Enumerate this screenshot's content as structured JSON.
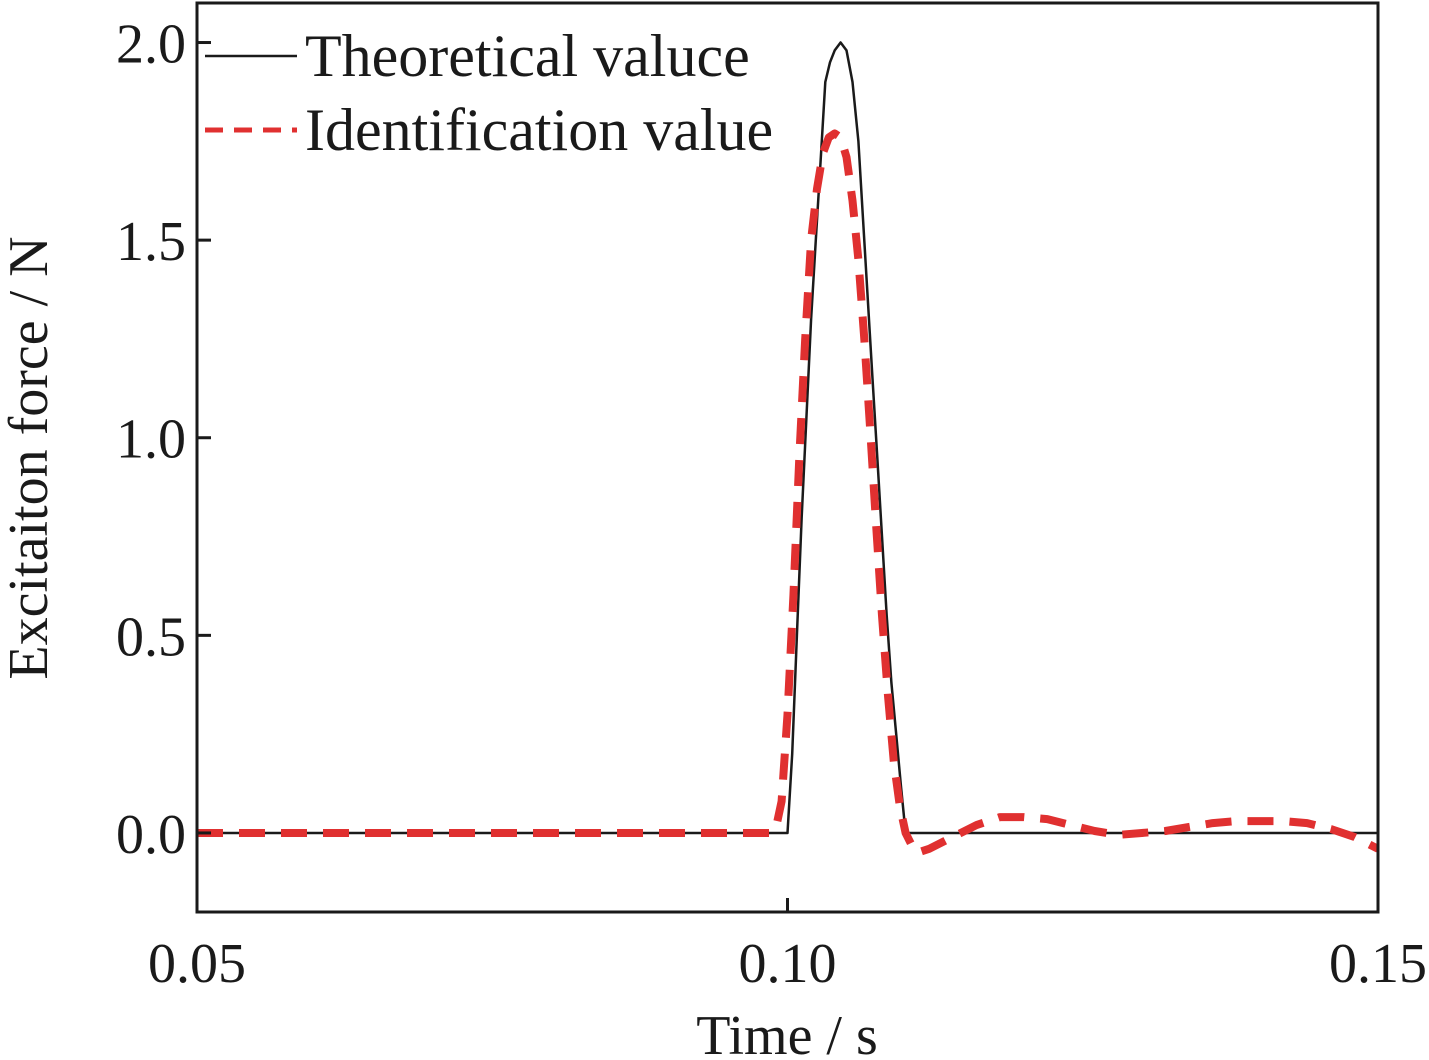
{
  "chart_data": {
    "type": "line",
    "title": "",
    "xlabel": "Time / s",
    "ylabel": "Excitaiton force / N",
    "xlim": [
      0.05,
      0.15
    ],
    "ylim": [
      -0.2,
      2.1
    ],
    "xticks": [
      0.05,
      0.1,
      0.15
    ],
    "xtick_labels": [
      "0.05",
      "0.10",
      "0.15"
    ],
    "yticks": [
      0.0,
      0.5,
      1.0,
      1.5,
      2.0
    ],
    "ytick_labels": [
      "0.0",
      "0.5",
      "1.0",
      "1.5",
      "2.0"
    ],
    "grid": false,
    "legend_position": "top-left",
    "series": [
      {
        "name": "Theoretical valuce",
        "color": "#1a1a1a",
        "style": "solid",
        "x": [
          0.05,
          0.0998,
          0.1,
          0.1004,
          0.1008,
          0.1012,
          0.1016,
          0.102,
          0.1024,
          0.1028,
          0.1032,
          0.1036,
          0.104,
          0.1045,
          0.105,
          0.1055,
          0.106,
          0.1064,
          0.1068,
          0.1072,
          0.1076,
          0.108,
          0.1084,
          0.1088,
          0.1092,
          0.1096,
          0.11,
          0.1102,
          0.15
        ],
        "y": [
          0.0,
          0.0,
          0.0,
          0.2,
          0.5,
          0.8,
          1.05,
          1.3,
          1.5,
          1.7,
          1.9,
          1.95,
          1.98,
          2.0,
          1.98,
          1.9,
          1.75,
          1.55,
          1.35,
          1.15,
          0.95,
          0.75,
          0.55,
          0.38,
          0.25,
          0.12,
          0.0,
          0.0,
          0.0
        ]
      },
      {
        "name": "Identification value",
        "color": "#e03030",
        "style": "dashed",
        "x": [
          0.05,
          0.06,
          0.07,
          0.08,
          0.09,
          0.0985,
          0.099,
          0.0995,
          0.1,
          0.1005,
          0.101,
          0.1015,
          0.102,
          0.1025,
          0.103,
          0.1035,
          0.104,
          0.1045,
          0.105,
          0.1055,
          0.106,
          0.1065,
          0.107,
          0.1075,
          0.108,
          0.1085,
          0.109,
          0.1095,
          0.11,
          0.1105,
          0.111,
          0.112,
          0.114,
          0.116,
          0.118,
          0.12,
          0.122,
          0.124,
          0.126,
          0.128,
          0.13,
          0.132,
          0.134,
          0.136,
          0.138,
          0.14,
          0.142,
          0.144,
          0.146,
          0.148,
          0.15
        ],
        "y": [
          0.0,
          0.0,
          0.0,
          0.0,
          0.0,
          0.0,
          0.01,
          0.08,
          0.3,
          0.6,
          0.95,
          1.25,
          1.5,
          1.63,
          1.72,
          1.76,
          1.77,
          1.76,
          1.71,
          1.6,
          1.45,
          1.25,
          1.02,
          0.78,
          0.55,
          0.35,
          0.18,
          0.07,
          0.0,
          -0.03,
          -0.05,
          -0.04,
          -0.01,
          0.02,
          0.04,
          0.04,
          0.035,
          0.02,
          0.005,
          -0.005,
          0.0,
          0.005,
          0.015,
          0.025,
          0.03,
          0.03,
          0.03,
          0.025,
          0.01,
          -0.01,
          -0.04
        ]
      }
    ]
  }
}
